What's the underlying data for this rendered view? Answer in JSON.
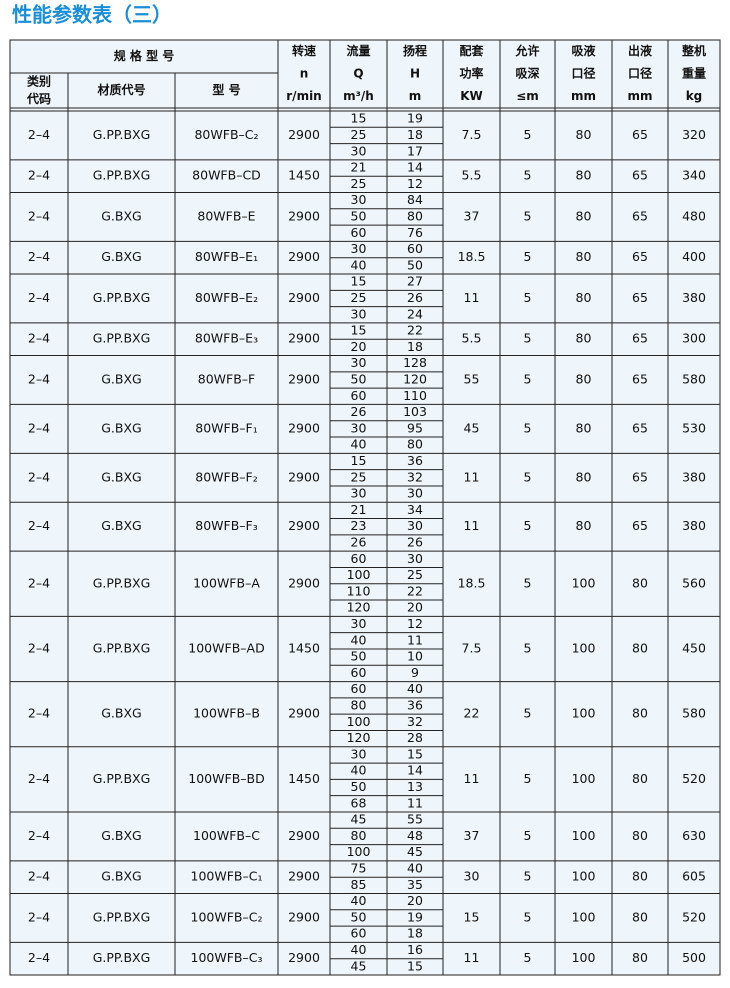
{
  "title": "性能参数表（三）",
  "table": {
    "header_top": "规 格 型 号",
    "columns": [
      [
        "类别",
        "代码"
      ],
      [
        "材质代号"
      ],
      [
        "型 号"
      ],
      [
        "转速",
        "n",
        "r/min"
      ],
      [
        "流量",
        "Q",
        "m³/h"
      ],
      [
        "扬程",
        "H",
        "m"
      ],
      [
        "配套",
        "功率",
        "KW"
      ],
      [
        "允许",
        "吸深",
        "≤m"
      ],
      [
        "吸液",
        "口径",
        "mm"
      ],
      [
        "出液",
        "口径",
        "mm"
      ],
      [
        "整机",
        "重量",
        "kg"
      ]
    ],
    "groups": [
      {
        "category": "2–4",
        "material": "G.PP.BXG",
        "model": "80WFB–C₂",
        "speed": 2900,
        "flows": [
          15,
          25,
          30
        ],
        "heads": [
          19,
          18,
          17
        ],
        "power": 7.5,
        "suction": 5,
        "inlet": 80,
        "outlet": 65,
        "weight": 320
      },
      {
        "category": "2–4",
        "material": "G.PP.BXG",
        "model": "80WFB–CD",
        "speed": 1450,
        "flows": [
          21,
          25
        ],
        "heads": [
          14,
          12
        ],
        "power": 5.5,
        "suction": 5,
        "inlet": 80,
        "outlet": 65,
        "weight": 340
      },
      {
        "category": "2–4",
        "material": "G.BXG",
        "model": "80WFB–E",
        "speed": 2900,
        "flows": [
          30,
          50,
          60
        ],
        "heads": [
          84,
          80,
          76
        ],
        "power": 37,
        "suction": 5,
        "inlet": 80,
        "outlet": 65,
        "weight": 480
      },
      {
        "category": "2–4",
        "material": "G.BXG",
        "model": "80WFB–E₁",
        "speed": 2900,
        "flows": [
          30,
          40
        ],
        "heads": [
          60,
          50
        ],
        "power": 18.5,
        "suction": 5,
        "inlet": 80,
        "outlet": 65,
        "weight": 400
      },
      {
        "category": "2–4",
        "material": "G.PP.BXG",
        "model": "80WFB–E₂",
        "speed": 2900,
        "flows": [
          15,
          25,
          30
        ],
        "heads": [
          27,
          26,
          24
        ],
        "power": 11,
        "suction": 5,
        "inlet": 80,
        "outlet": 65,
        "weight": 380
      },
      {
        "category": "2–4",
        "material": "G.PP.BXG",
        "model": "80WFB–E₃",
        "speed": 2900,
        "flows": [
          15,
          20
        ],
        "heads": [
          22,
          18
        ],
        "power": 5.5,
        "suction": 5,
        "inlet": 80,
        "outlet": 65,
        "weight": 300
      },
      {
        "category": "2–4",
        "material": "G.BXG",
        "model": "80WFB–F",
        "speed": 2900,
        "flows": [
          30,
          50,
          60
        ],
        "heads": [
          128,
          120,
          110
        ],
        "power": 55,
        "suction": 5,
        "inlet": 80,
        "outlet": 65,
        "weight": 580
      },
      {
        "category": "2–4",
        "material": "G.BXG",
        "model": "80WFB–F₁",
        "speed": 2900,
        "flows": [
          26,
          30,
          40
        ],
        "heads": [
          103,
          95,
          80
        ],
        "power": 45,
        "suction": 5,
        "inlet": 80,
        "outlet": 65,
        "weight": 530
      },
      {
        "category": "2–4",
        "material": "G.BXG",
        "model": "80WFB–F₂",
        "speed": 2900,
        "flows": [
          15,
          25,
          30
        ],
        "heads": [
          36,
          32,
          30
        ],
        "power": 11,
        "suction": 5,
        "inlet": 80,
        "outlet": 65,
        "weight": 380
      },
      {
        "category": "2–4",
        "material": "G.BXG",
        "model": "80WFB–F₃",
        "speed": 2900,
        "flows": [
          21,
          23,
          26
        ],
        "heads": [
          34,
          30,
          26
        ],
        "power": 11,
        "suction": 5,
        "inlet": 80,
        "outlet": 65,
        "weight": 380
      },
      {
        "category": "2–4",
        "material": "G.PP.BXG",
        "model": "100WFB–A",
        "speed": 2900,
        "flows": [
          60,
          100,
          110,
          120
        ],
        "heads": [
          30,
          25,
          22,
          20
        ],
        "power": 18.5,
        "suction": 5,
        "inlet": 100,
        "outlet": 80,
        "weight": 560
      },
      {
        "category": "2–4",
        "material": "G.PP.BXG",
        "model": "100WFB–AD",
        "speed": 1450,
        "flows": [
          30,
          40,
          50,
          60
        ],
        "heads": [
          12,
          11,
          10,
          9
        ],
        "power": 7.5,
        "suction": 5,
        "inlet": 100,
        "outlet": 80,
        "weight": 450
      },
      {
        "category": "2–4",
        "material": "G.BXG",
        "model": "100WFB–B",
        "speed": 2900,
        "flows": [
          60,
          80,
          100,
          120
        ],
        "heads": [
          40,
          36,
          32,
          28
        ],
        "power": 22,
        "suction": 5,
        "inlet": 100,
        "outlet": 80,
        "weight": 580
      },
      {
        "category": "2–4",
        "material": "G.PP.BXG",
        "model": "100WFB–BD",
        "speed": 1450,
        "flows": [
          30,
          40,
          50,
          68
        ],
        "heads": [
          15,
          14,
          13,
          11
        ],
        "power": 11,
        "suction": 5,
        "inlet": 100,
        "outlet": 80,
        "weight": 520
      },
      {
        "category": "2–4",
        "material": "G.BXG",
        "model": "100WFB–C",
        "speed": 2900,
        "flows": [
          45,
          80,
          100
        ],
        "heads": [
          55,
          48,
          45
        ],
        "power": 37,
        "suction": 5,
        "inlet": 100,
        "outlet": 80,
        "weight": 630
      },
      {
        "category": "2–4",
        "material": "G.BXG",
        "model": "100WFB–C₁",
        "speed": 2900,
        "flows": [
          75,
          85
        ],
        "heads": [
          40,
          35
        ],
        "power": 30,
        "suction": 5,
        "inlet": 100,
        "outlet": 80,
        "weight": 605
      },
      {
        "category": "2–4",
        "material": "G.PP.BXG",
        "model": "100WFB–C₂",
        "speed": 2900,
        "flows": [
          40,
          50,
          60
        ],
        "heads": [
          20,
          19,
          18
        ],
        "power": 15,
        "suction": 5,
        "inlet": 100,
        "outlet": 80,
        "weight": 520
      },
      {
        "category": "2–4",
        "material": "G.PP.BXG",
        "model": "100WFB–C₃",
        "speed": 2900,
        "flows": [
          40,
          45
        ],
        "heads": [
          16,
          15
        ],
        "power": 11,
        "suction": 5,
        "inlet": 100,
        "outlet": 80,
        "weight": 500
      }
    ]
  }
}
